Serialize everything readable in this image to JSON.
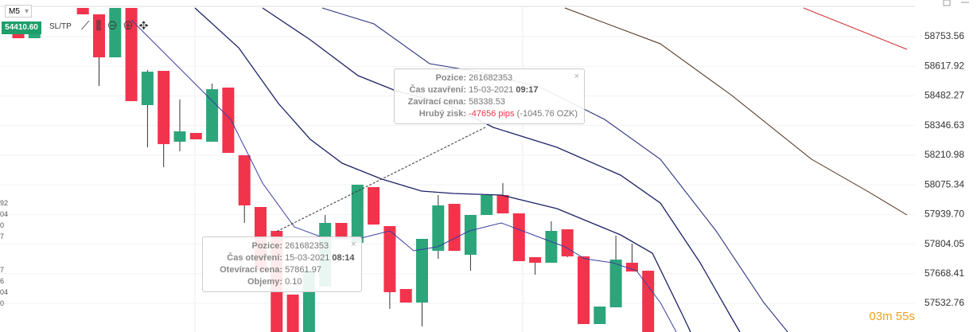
{
  "toolbar": {
    "timeframe": "M5",
    "price": "54410.60",
    "sltp": "SL/TP"
  },
  "chart_data": {
    "type": "candlestick",
    "open": [
      58775.4,
      58746.3,
      null,
      null,
      58884.8,
      58855.6,
      58658.8,
      58884.8,
      58440.2,
      58596.9,
      58272.6,
      58312.7,
      58272.6,
      58520.4,
      58210.6,
      57973.8,
      57864.4,
      57572.9,
      57401.7,
      57609.4,
      57900.9,
      57809.8,
      58064.9,
      57886.3,
      57598.4,
      57536.5,
      57773.3,
      57988.3,
      57755,
      57937.3,
      58028.4,
      57944.6,
      57744.2,
      57718.7,
      57871.7,
      57747.8,
      57438.1,
      57514.6,
      57718.7,
      57682.2
    ],
    "high": [
      58775.4,
      58775.4,
      null,
      null,
      58884.8,
      58855.6,
      58884.8,
      58884.8,
      58600.5,
      58596.9,
      58465.7,
      58312.7,
      58538.6,
      58520.4,
      58210.6,
      57973.8,
      57864.4,
      57572.9,
      57682.2,
      57937.3,
      57900.9,
      58075.8,
      58064.9,
      57886.3,
      57598.4,
      57828,
      58028.4,
      57988.3,
      57937.3,
      58028.4,
      58083.1,
      57944.6,
      57744.2,
      57908.2,
      57871.7,
      57747.8,
      57518.2,
      57842.6,
      57806.1,
      57682.2
    ],
    "low": [
      58746.3,
      58746.3,
      null,
      null,
      58855.6,
      58527.6,
      58658.8,
      58458.4,
      58247.1,
      58156,
      58228.8,
      58283.5,
      58272.6,
      58221.5,
      57900.9,
      57682.2,
      57401.7,
      57401.7,
      57401.7,
      57609.4,
      57828,
      57809.8,
      57893.6,
      57507.3,
      57536.5,
      57427.2,
      57736.8,
      57773.3,
      57682.2,
      57937.3,
      57944.6,
      57726,
      57664,
      57718.7,
      57744.2,
      57438.1,
      57438.1,
      57514.6,
      57678.6,
      57401.7
    ],
    "close": [
      58746.3,
      58775.4,
      null,
      null,
      58855.6,
      58658.8,
      58884.8,
      58458.4,
      58593.2,
      58261.6,
      58320,
      58283.5,
      58513,
      58221.5,
      57981.1,
      57682.2,
      57401.7,
      57401.7,
      57682.2,
      57900.9,
      57828,
      58075.8,
      57893.6,
      57583.9,
      57536.5,
      57828,
      57981.1,
      57773.3,
      57937.3,
      58028.4,
      57944.6,
      57726,
      57718.7,
      57864.4,
      57747.8,
      57438.1,
      57518.2,
      57733.3,
      57678.6,
      57401.7
    ],
    "up_color": "#2ca57a",
    "down_color": "#f2334c",
    "ylim": [
      57401.7,
      58884.8
    ],
    "yticks": [
      58753.56,
      58617.92,
      58482.27,
      58346.63,
      58210.98,
      58075.34,
      {
        "value": 57939.7,
        "label": "57939.70"
      },
      57804.05,
      57668.41,
      57532.76
    ],
    "trade_line": [
      57861.97,
      58338.53
    ],
    "timer": "03m 55s"
  },
  "left_clipped_labels": [
    "92",
    "04",
    "0",
    "7",
    "7",
    "6",
    "04",
    "0"
  ],
  "tooltips": [
    {
      "rows": [
        {
          "label": "Pozice:",
          "value": "261682353"
        },
        {
          "label": "Čas uzavření:",
          "value": "15-03-2021",
          "bold": "09:17"
        },
        {
          "label": "Zavírací cena:",
          "value": "58338.53"
        },
        {
          "label": "Hrubý zisk:",
          "value": "-47656 pips",
          "extra": "(-1045.76 OZK)"
        }
      ]
    },
    {
      "rows": [
        {
          "label": "Pozice:",
          "value": "261682353"
        },
        {
          "label": "Čas otevření:",
          "value": "15-03-2021",
          "bold": "08:14"
        },
        {
          "label": "Otevírací cena:",
          "value": "57861.97"
        },
        {
          "label": "Objemy:",
          "value": "0.10"
        }
      ]
    }
  ]
}
